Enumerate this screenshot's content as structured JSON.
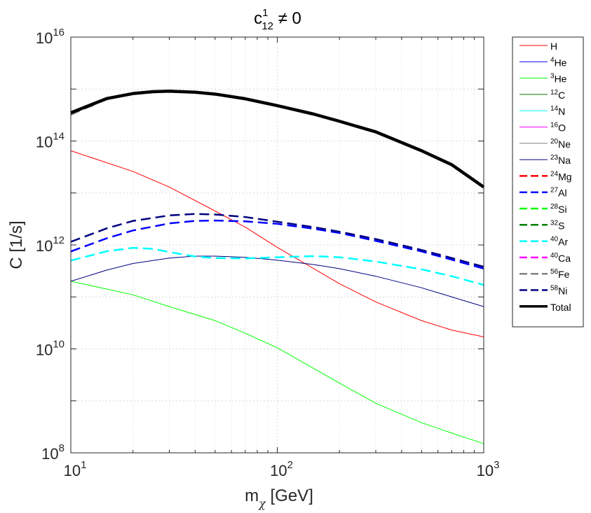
{
  "chart_data": {
    "type": "line",
    "title": "c^1_12 ≠ 0",
    "title_parts": {
      "base": "c",
      "sup": "1",
      "sub": "12",
      "rest": " ≠ 0"
    },
    "xlabel": "m_χ [GeV]",
    "xlabel_parts": {
      "base": "m",
      "sub": "χ",
      "rest": " [GeV]"
    },
    "ylabel": "C [1/s]",
    "xscale": "log",
    "yscale": "log",
    "xlim": [
      10,
      1000
    ],
    "ylim": [
      100000000.0,
      1e+16
    ],
    "grid": true,
    "legend_position": "outside-right",
    "x_ticks": [
      {
        "value": 10,
        "base": "10",
        "exp": "1"
      },
      {
        "value": 100,
        "base": "10",
        "exp": "2"
      },
      {
        "value": 1000,
        "base": "10",
        "exp": "3"
      }
    ],
    "y_ticks": [
      {
        "value": 100000000.0,
        "base": "10",
        "exp": "8"
      },
      {
        "value": 10000000000.0,
        "base": "10",
        "exp": "10"
      },
      {
        "value": 1000000000000.0,
        "base": "10",
        "exp": "12"
      },
      {
        "value": 100000000000000.0,
        "base": "10",
        "exp": "14"
      },
      {
        "value": 1e+16,
        "base": "10",
        "exp": "16"
      }
    ],
    "series": [
      {
        "name": "H",
        "sup": "",
        "label": "H",
        "color": "#ff0000",
        "style": "solid",
        "width": 1,
        "x": [
          10,
          20,
          30,
          50,
          70,
          100,
          200,
          300,
          500,
          700,
          1000
        ],
        "y": [
          65000000000000.0,
          26000000000000.0,
          13000000000000.0,
          4500000000000.0,
          2200000000000.0,
          900000000000.0,
          180000000000.0,
          80000000000.0,
          35000000000.0,
          23000000000.0,
          17000000000.0
        ]
      },
      {
        "name": "4He",
        "sup": "4",
        "label": "He",
        "color": "#0000ff",
        "style": "solid",
        "width": 1,
        "x": [
          10
        ],
        "y": [
          200000000000.0
        ]
      },
      {
        "name": "3He",
        "sup": "3",
        "label": "He",
        "color": "#00ff00",
        "style": "solid",
        "width": 1,
        "x": [
          10,
          20,
          30,
          50,
          70,
          100,
          200,
          300,
          500,
          700,
          1000
        ],
        "y": [
          200000000000.0,
          110000000000.0,
          65000000000.0,
          35000000000.0,
          20000000000.0,
          10500000000.0,
          2200000000.0,
          900000000.0,
          380000000.0,
          240000000.0,
          150000000.0
        ]
      },
      {
        "name": "12C",
        "sup": "12",
        "label": "C",
        "color": "#008000",
        "style": "solid",
        "width": 1,
        "x": [
          10
        ],
        "y": [
          200000000000.0
        ]
      },
      {
        "name": "14N",
        "sup": "14",
        "label": "N",
        "color": "#00ffff",
        "style": "solid",
        "width": 1,
        "x": [
          10
        ],
        "y": [
          200000000000.0
        ]
      },
      {
        "name": "16O",
        "sup": "16",
        "label": "O",
        "color": "#ff00ff",
        "style": "solid",
        "width": 1,
        "x": [
          10
        ],
        "y": [
          200000000000.0
        ]
      },
      {
        "name": "20Ne",
        "sup": "20",
        "label": "Ne",
        "color": "#808080",
        "style": "solid",
        "width": 1,
        "x": [
          10
        ],
        "y": [
          200000000000.0
        ]
      },
      {
        "name": "23Na",
        "sup": "23",
        "label": "Na",
        "color": "#000080",
        "style": "solid",
        "width": 1,
        "x": [
          10,
          15,
          20,
          30,
          40,
          50,
          70,
          100,
          150,
          200,
          300,
          500,
          700,
          1000
        ],
        "y": [
          200000000000.0,
          330000000000.0,
          440000000000.0,
          560000000000.0,
          610000000000.0,
          610000000000.0,
          580000000000.0,
          510000000000.0,
          420000000000.0,
          350000000000.0,
          250000000000.0,
          150000000000.0,
          100000000000.0,
          65000000000.0
        ]
      },
      {
        "name": "24Mg",
        "sup": "24",
        "label": "Mg",
        "color": "#ff0000",
        "style": "dashed",
        "width": 2.5,
        "x": [
          10
        ],
        "y": [
          200000000000.0
        ]
      },
      {
        "name": "27Al",
        "sup": "27",
        "label": "Al",
        "color": "#0000ff",
        "style": "dashed",
        "width": 2.5,
        "x": [
          10,
          15,
          20,
          30,
          40,
          50,
          70,
          100,
          150,
          200,
          300,
          500,
          700,
          1000
        ],
        "y": [
          750000000000.0,
          1350000000000.0,
          1900000000000.0,
          2600000000000.0,
          2900000000000.0,
          2950000000000.0,
          2850000000000.0,
          2550000000000.0,
          2050000000000.0,
          1700000000000.0,
          1200000000000.0,
          750000000000.0,
          520000000000.0,
          350000000000.0
        ]
      },
      {
        "name": "28Si",
        "sup": "28",
        "label": "Si",
        "color": "#00ff00",
        "style": "dashed",
        "width": 2.5,
        "x": [
          10
        ],
        "y": [
          200000000000.0
        ]
      },
      {
        "name": "32S",
        "sup": "32",
        "label": "S",
        "color": "#008000",
        "style": "dashed",
        "width": 2.5,
        "x": [
          10
        ],
        "y": [
          200000000000.0
        ]
      },
      {
        "name": "40Ar",
        "sup": "40",
        "label": "Ar",
        "color": "#00ffff",
        "style": "dashed",
        "width": 2.5,
        "x": [
          10,
          15,
          20,
          25,
          30,
          40,
          50,
          70,
          100,
          150,
          200,
          300,
          500,
          700,
          1000
        ],
        "y": [
          500000000000.0,
          760000000000.0,
          880000000000.0,
          840000000000.0,
          730000000000.0,
          600000000000.0,
          560000000000.0,
          550000000000.0,
          580000000000.0,
          610000000000.0,
          580000000000.0,
          480000000000.0,
          340000000000.0,
          250000000000.0,
          170000000000.0
        ]
      },
      {
        "name": "40Ca",
        "sup": "40",
        "label": "Ca",
        "color": "#ff00ff",
        "style": "dashed",
        "width": 2.5,
        "x": [
          10
        ],
        "y": [
          200000000000.0
        ]
      },
      {
        "name": "56Fe",
        "sup": "56",
        "label": "Fe",
        "color": "#808080",
        "style": "dashed",
        "width": 2.5,
        "x": [
          10,
          11,
          12,
          13.5
        ],
        "y": [
          320000000000000.0,
          380000000000000.0,
          440000000000000.0,
          520000000000000.0
        ]
      },
      {
        "name": "58Ni",
        "sup": "58",
        "label": "Ni",
        "color": "#000080",
        "style": "dashed",
        "width": 2.5,
        "x": [
          10,
          15,
          20,
          30,
          40,
          50,
          70,
          100,
          150,
          200,
          300,
          500,
          700,
          1000
        ],
        "y": [
          1150000000000.0,
          2100000000000.0,
          2900000000000.0,
          3700000000000.0,
          3950000000000.0,
          3850000000000.0,
          3450000000000.0,
          2800000000000.0,
          2200000000000.0,
          1800000000000.0,
          1300000000000.0,
          800000000000.0,
          560000000000.0,
          380000000000.0
        ]
      },
      {
        "name": "Total",
        "sup": "",
        "label": "Total",
        "color": "#000000",
        "style": "solid",
        "width": 4.5,
        "x": [
          10,
          15,
          20,
          25,
          30,
          40,
          50,
          70,
          100,
          150,
          200,
          300,
          500,
          700,
          1000
        ],
        "y": [
          350000000000000.0,
          660000000000000.0,
          820000000000000.0,
          890000000000000.0,
          910000000000000.0,
          870000000000000.0,
          800000000000000.0,
          650000000000000.0,
          480000000000000.0,
          330000000000000.0,
          240000000000000.0,
          150000000000000.0,
          65000000000000.0,
          35000000000000.0,
          13000000000000.0
        ]
      }
    ]
  }
}
